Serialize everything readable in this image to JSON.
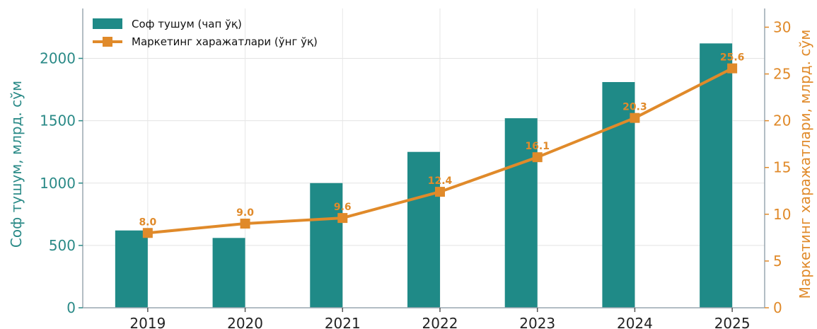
{
  "chart_data": {
    "type": "bar+line",
    "categories": [
      "2019",
      "2020",
      "2021",
      "2022",
      "2023",
      "2024",
      "2025"
    ],
    "series": [
      {
        "name": "Соф тушум (чап ўқ)",
        "type": "bar",
        "axis": "left",
        "color": "#1f8a87",
        "values": [
          620,
          560,
          1000,
          1250,
          1520,
          1810,
          2120
        ]
      },
      {
        "name": "Маркетинг харажатлари (ўнг ўқ)",
        "type": "line",
        "axis": "right",
        "color": "#e08a2a",
        "values": [
          8.0,
          9.0,
          9.6,
          12.4,
          16.1,
          20.3,
          25.6
        ],
        "labels": [
          "8.0",
          "9.0",
          "9.6",
          "12.4",
          "16.1",
          "20.3",
          "25.6"
        ]
      }
    ],
    "ylabel_left": "Соф тушум, млрд. сўм",
    "ylabel_right": "Маркетинг харажатлари, млрд. сўм",
    "ylim_left": [
      0,
      2400
    ],
    "yticks_left": [
      "0",
      "500",
      "1000",
      "1500",
      "2000"
    ],
    "ylim_right": [
      0,
      32
    ],
    "yticks_right": [
      "0",
      "5",
      "10",
      "15",
      "20",
      "25",
      "30"
    ],
    "grid": true,
    "legend_position": "top-left"
  }
}
